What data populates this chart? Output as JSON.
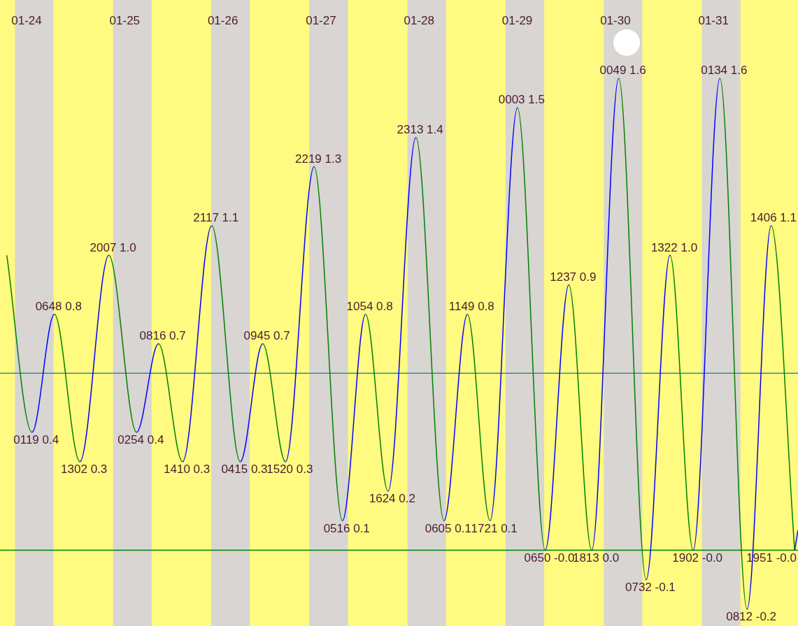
{
  "chart_data": {
    "type": "line",
    "x": [
      "--01-23T19:10",
      "--01-24T01:19",
      "--01-24T06:48",
      "--01-24T13:02",
      "--01-24T20:07",
      "--01-25T02:54",
      "--01-25T08:16",
      "--01-25T14:10",
      "--01-25T21:17",
      "--01-26T04:15",
      "--01-26T09:45",
      "--01-26T15:20",
      "--01-26T22:19",
      "--01-27T05:16",
      "--01-27T10:54",
      "--01-27T16:24",
      "--01-27T23:13",
      "--01-28T06:05",
      "--01-28T11:49",
      "--01-28T17:21",
      "--01-29T00:03",
      "--01-29T06:50",
      "--01-29T12:37",
      "--01-29T18:13",
      "--01-30T00:49",
      "--01-30T07:32",
      "--01-30T13:22",
      "--01-30T19:02",
      "--01-31T01:34",
      "--01-31T08:12",
      "--01-31T14:06",
      "--01-31T19:51"
    ],
    "series": [
      {
        "colors": [
          "#008000",
          "#0000ff",
          "#008000",
          "#0000ff",
          "#008000",
          "#0000ff",
          "#008000",
          "#0000ff",
          "#008000",
          "#0000ff",
          "#008000",
          "#0000ff",
          "#008000",
          "#0000ff",
          "#008000",
          "#0000ff",
          "#008000",
          "#0000ff",
          "#008000",
          "#0000ff",
          "#008000",
          "#0000ff",
          "#008000",
          "#0000ff",
          "#008000",
          "#0000ff",
          "#008000",
          "#0000ff",
          "#008000",
          "#0000ff",
          "#008000",
          "#0000ff"
        ],
        "values": [
          1.0,
          0.4,
          0.8,
          0.3,
          1.0,
          0.4,
          0.7,
          0.3,
          1.1,
          0.3,
          0.7,
          0.3,
          1.3,
          0.1,
          0.8,
          0.2,
          1.4,
          0.1,
          0.8,
          0.1,
          1.5,
          -0.0,
          0.9,
          0.0,
          1.6,
          -0.1,
          1.0,
          -0.0,
          1.6,
          -0.2,
          1.1,
          -0.0
        ],
        "value_labels": [
          null,
          "0119 0.4",
          "0648 0.8",
          "1302 0.3",
          "2007 1.0",
          "0254 0.4",
          "0816 0.7",
          "1410 0.3",
          "2117 1.1",
          "0415 0.3",
          "0945 0.7",
          "1520 0.3",
          "2219 1.3",
          "0516 0.1",
          "1054 0.8",
          "1624 0.2",
          "2313 1.4",
          "0605 0.1",
          "1149 0.8",
          "1721 0.1",
          "0003 1.5",
          "0650 -0.0",
          "1237 0.9",
          "1813 0.0",
          "0049 1.6",
          "0732 -0.1",
          "1322 1.0",
          "1902 -0.0",
          "0134 1.6",
          "0812 -0.2",
          "1406 1.1",
          "1951 -0.0"
        ]
      }
    ],
    "xlim": [
      "--01-23T17:30",
      "--01-31T20:40"
    ],
    "xticks": [
      {
        "value": "--01-24",
        "label": "01-24"
      },
      {
        "value": "--01-25",
        "label": "01-25"
      },
      {
        "value": "--01-26",
        "label": "01-26"
      },
      {
        "value": "--01-27",
        "label": "01-27"
      },
      {
        "value": "--01-28",
        "label": "01-28"
      },
      {
        "value": "--01-29",
        "label": "01-29"
      },
      {
        "value": "--01-30",
        "label": "01-30"
      },
      {
        "value": "--01-31",
        "label": "01-31"
      }
    ],
    "tick_labels": "x",
    "legend": false,
    "marker": "none",
    "ref_lines": [
      {
        "axis": "y",
        "value": 0.6,
        "color": "#3c8c8c"
      },
      {
        "axis": "y",
        "value": 0,
        "color": "#008000"
      }
    ],
    "bands": [
      {
        "axis": "x",
        "from": "--01-23T21:10",
        "to": "--01-24T06:35",
        "color": "#d8d5d2"
      },
      {
        "axis": "x",
        "from": "--01-24T21:10",
        "to": "--01-25T06:35",
        "color": "#d8d5d2"
      },
      {
        "axis": "x",
        "from": "--01-25T21:10",
        "to": "--01-26T06:35",
        "color": "#d8d5d2"
      },
      {
        "axis": "x",
        "from": "--01-26T21:10",
        "to": "--01-27T06:35",
        "color": "#d8d5d2"
      },
      {
        "axis": "x",
        "from": "--01-27T21:10",
        "to": "--01-28T06:35",
        "color": "#d8d5d2"
      },
      {
        "axis": "x",
        "from": "--01-28T21:10",
        "to": "--01-29T06:35",
        "color": "#d8d5d2"
      },
      {
        "axis": "x",
        "from": "--01-29T21:10",
        "to": "--01-30T06:35",
        "color": "#d8d5d2"
      },
      {
        "axis": "x",
        "from": "--01-30T21:10",
        "to": "--01-31T06:35",
        "color": "#d8d5d2"
      }
    ]
  }
}
